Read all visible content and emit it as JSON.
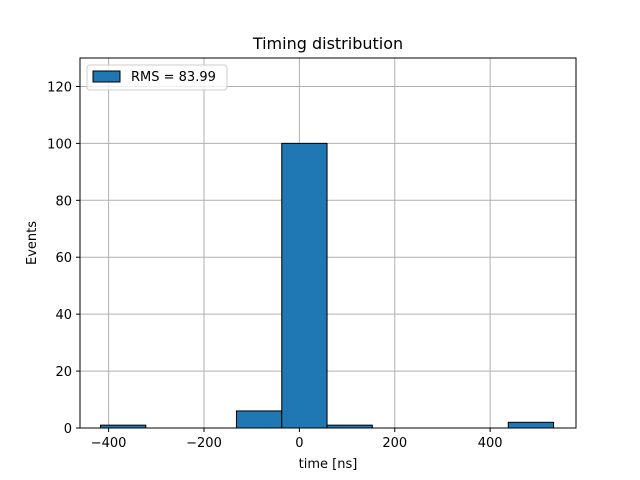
{
  "chart_data": {
    "type": "bar",
    "title": "Timing distribution",
    "xlabel": "time [ns]",
    "ylabel": "Events",
    "xlim": [
      -460,
      580
    ],
    "ylim": [
      0,
      130
    ],
    "xticks": [
      -400,
      -200,
      0,
      200,
      400
    ],
    "xtick_labels": [
      "−400",
      "−200",
      "0",
      "200",
      "400"
    ],
    "yticks": [
      0,
      20,
      40,
      60,
      80,
      100,
      120
    ],
    "ytick_labels": [
      "0",
      "20",
      "40",
      "60",
      "80",
      "100",
      "120"
    ],
    "grid": true,
    "legend": {
      "position": "top-left",
      "entries": [
        "RMS = 83.99"
      ]
    },
    "bin_edges": [
      -417,
      -322,
      -227,
      -132,
      -37,
      58,
      153,
      248,
      343,
      438,
      533
    ],
    "values": [
      1,
      0,
      0,
      6,
      100,
      1,
      0,
      0,
      0,
      2
    ],
    "colors": {
      "bar": "#1f77b4",
      "edge": "#000000",
      "grid": "#b0b0b0"
    }
  }
}
